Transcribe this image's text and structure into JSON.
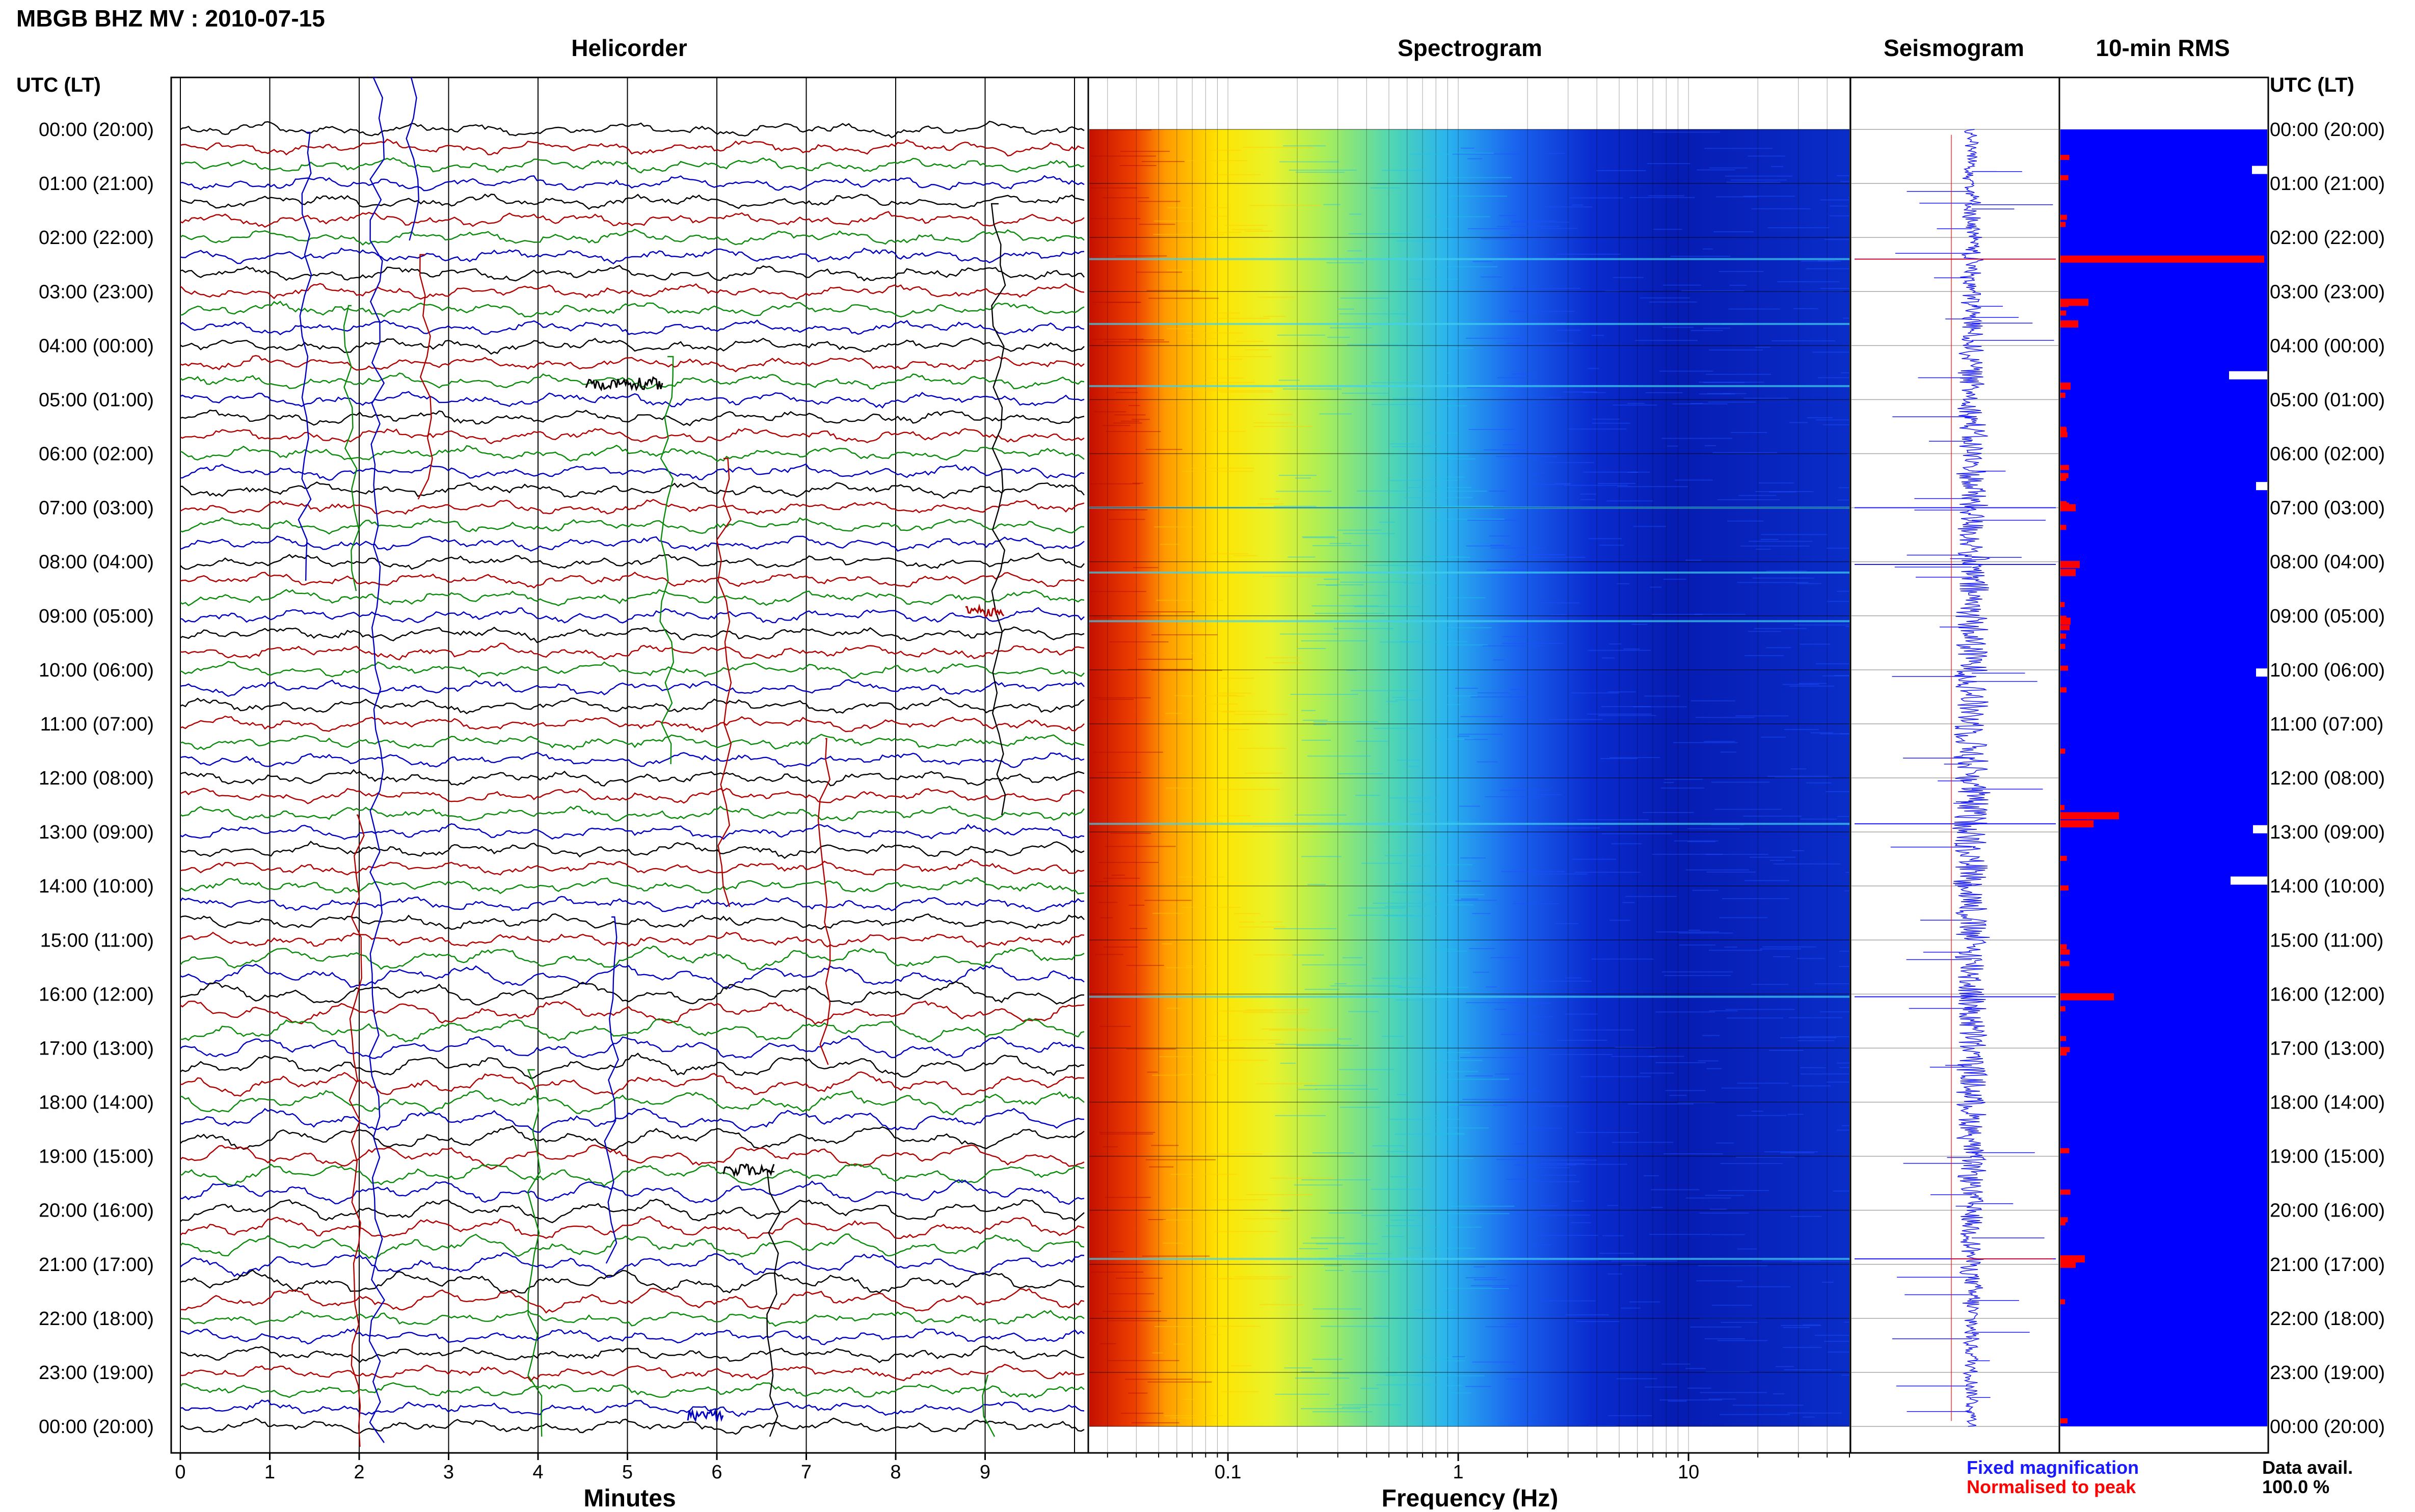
{
  "title": "MBGB BHZ MV : 2010-07-15",
  "panels": {
    "helicorder": "Helicorder",
    "spectrogram": "Spectrogram",
    "seismogram": "Seismogram",
    "rms": "10-min RMS"
  },
  "time_axis": {
    "header": "UTC (LT)",
    "labels": [
      "00:00 (20:00)",
      "01:00 (21:00)",
      "02:00 (22:00)",
      "03:00 (23:00)",
      "04:00 (00:00)",
      "05:00 (01:00)",
      "06:00 (02:00)",
      "07:00 (03:00)",
      "08:00 (04:00)",
      "09:00 (05:00)",
      "10:00 (06:00)",
      "11:00 (07:00)",
      "12:00 (08:00)",
      "13:00 (09:00)",
      "14:00 (10:00)",
      "15:00 (11:00)",
      "16:00 (12:00)",
      "17:00 (13:00)",
      "18:00 (14:00)",
      "19:00 (15:00)",
      "20:00 (16:00)",
      "21:00 (17:00)",
      "22:00 (18:00)",
      "23:00 (19:00)",
      "00:00 (20:00)"
    ]
  },
  "helicorder_axis": {
    "xlabel": "Minutes",
    "ticks": [
      "0",
      "1",
      "2",
      "3",
      "4",
      "5",
      "6",
      "7",
      "8",
      "9"
    ]
  },
  "spectrogram_axis": {
    "xlabel": "Frequency (Hz)",
    "ticks": [
      "0.1",
      "1",
      "10"
    ],
    "scale": "log"
  },
  "legend": {
    "fixed": "Fixed magnification",
    "normalised": "Normalised to peak"
  },
  "availability": {
    "label": "Data avail.",
    "value": "100.0 %"
  },
  "colors": {
    "trace_cycle": [
      "#000000",
      "#b00000",
      "#0a8a0a",
      "#0000c0"
    ],
    "fixed": "#1a1aff",
    "normalised": "#ff0000",
    "rms_fill": "#0000ff"
  },
  "chart_data": {
    "type": "heatmap",
    "title": "MBGB BHZ MV : 2010-07-15",
    "x_units": "Hz",
    "y_units": "UTC hour",
    "rms_spikes_utc": [
      2.4,
      3.2,
      3.6,
      4.75,
      7.0,
      8.05,
      8.2,
      9.1,
      12.7,
      12.85,
      16.05,
      20.9,
      21.0
    ],
    "rms_gaps_utc": [
      0.75,
      4.55,
      6.6,
      10.05,
      12.95,
      13.9
    ]
  }
}
